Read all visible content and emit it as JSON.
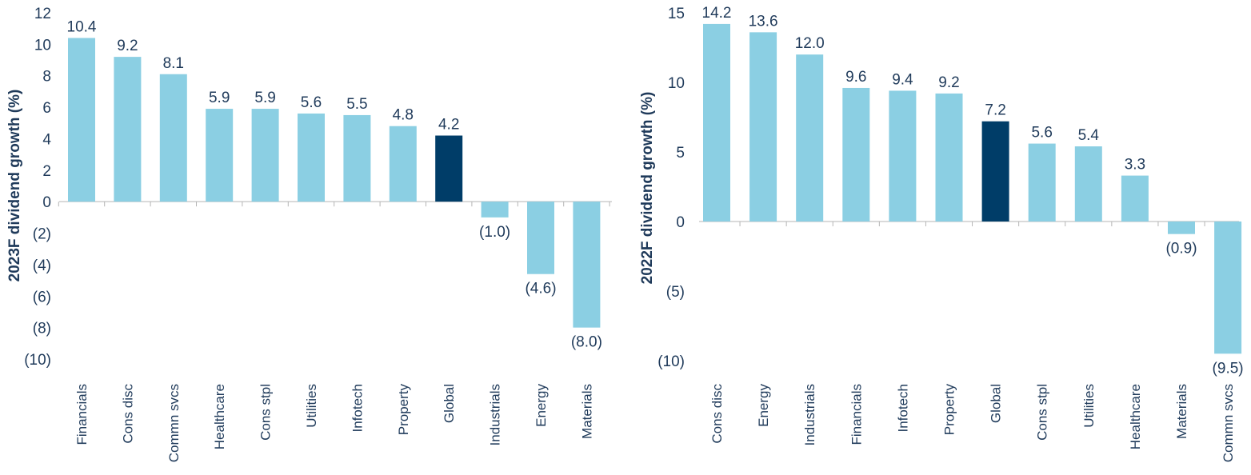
{
  "colors": {
    "bar": "#8bcfe3",
    "highlight": "#003d68",
    "text": "#1f3a5a",
    "axis": "#b5b5b5"
  },
  "chart_data": [
    {
      "type": "bar",
      "ylabel": "2023F dividend growth (%)",
      "ylim": [
        -10,
        12
      ],
      "yticks": [
        12,
        10,
        8,
        6,
        4,
        2,
        0,
        -2,
        -4,
        -6,
        -8,
        -10
      ],
      "ytick_labels": [
        "12",
        "10",
        "8",
        "6",
        "4",
        "2",
        "0",
        "(2)",
        "(4)",
        "(6)",
        "(8)",
        "(10)"
      ],
      "categories": [
        "Financials",
        "Cons disc",
        "Commn svcs",
        "Healthcare",
        "Cons stpl",
        "Utilities",
        "Infotech",
        "Property",
        "Global",
        "Industrials",
        "Energy",
        "Materials"
      ],
      "values": [
        10.4,
        9.2,
        8.1,
        5.9,
        5.9,
        5.6,
        5.5,
        4.8,
        4.2,
        -1.0,
        -4.6,
        -8.0
      ],
      "value_labels": [
        "10.4",
        "9.2",
        "8.1",
        "5.9",
        "5.9",
        "5.6",
        "5.5",
        "4.8",
        "4.2",
        "(1.0)",
        "(4.6)",
        "(8.0)"
      ],
      "highlight": "Global",
      "grid": false,
      "legend": "none"
    },
    {
      "type": "bar",
      "ylabel": "2022F dividend growth (%)",
      "ylim": [
        -10,
        15
      ],
      "yticks": [
        15,
        10,
        5,
        0,
        -5,
        -10
      ],
      "ytick_labels": [
        "15",
        "10",
        "5",
        "0",
        "(5)",
        "(10)"
      ],
      "categories": [
        "Cons disc",
        "Energy",
        "Industrials",
        "Financials",
        "Infotech",
        "Property",
        "Global",
        "Cons stpl",
        "Utilities",
        "Healthcare",
        "Materials",
        "Commn svcs"
      ],
      "values": [
        14.2,
        13.6,
        12.0,
        9.6,
        9.4,
        9.2,
        7.2,
        5.6,
        5.4,
        3.3,
        -0.9,
        -9.5
      ],
      "value_labels": [
        "14.2",
        "13.6",
        "12.0",
        "9.6",
        "9.4",
        "9.2",
        "7.2",
        "5.6",
        "5.4",
        "3.3",
        "(0.9)",
        "(9.5)"
      ],
      "highlight": "Global",
      "grid": false,
      "legend": "none"
    }
  ]
}
